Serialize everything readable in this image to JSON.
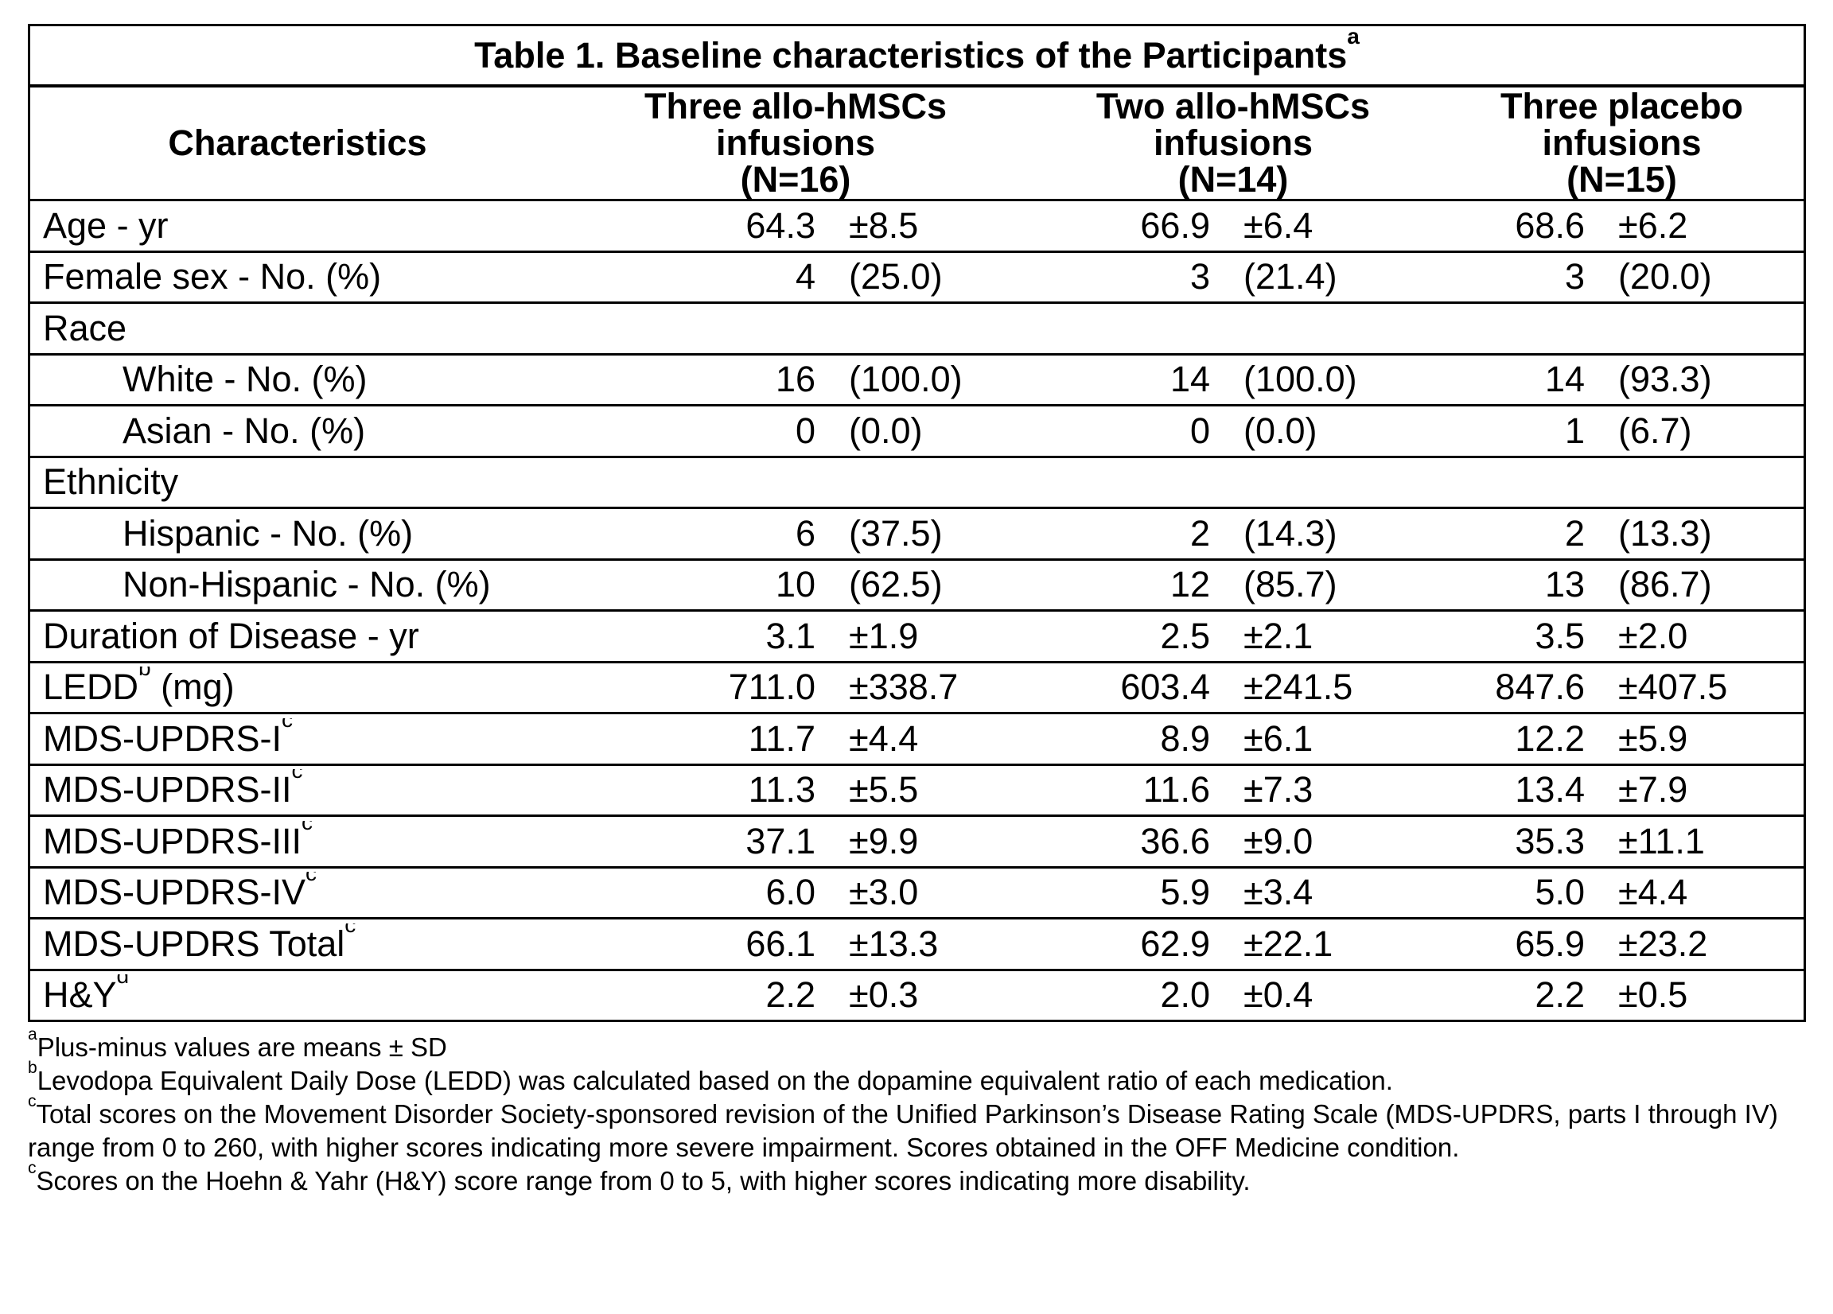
{
  "title": {
    "text": "Table 1. Baseline characteristics of the Participants",
    "sup": "a"
  },
  "table": {
    "headers": [
      {
        "lines": [
          "Characteristics"
        ]
      },
      {
        "lines": [
          "Three allo-hMSCs",
          "infusions",
          "(N=16)"
        ]
      },
      {
        "lines": [
          "Two allo-hMSCs",
          "infusions",
          "(N=14)"
        ]
      },
      {
        "lines": [
          "Three placebo",
          "infusions",
          "(N=15)"
        ]
      }
    ],
    "rows": [
      {
        "label": "Age - yr",
        "sup": "",
        "label_after": "",
        "indent": false,
        "g1": {
          "v": "64.3",
          "s": "±8.5"
        },
        "g2": {
          "v": "66.9",
          "s": "±6.4"
        },
        "g3": {
          "v": "68.6",
          "s": "±6.2"
        }
      },
      {
        "label": "Female sex - No. (%)",
        "sup": "",
        "label_after": "",
        "indent": false,
        "g1": {
          "v": "4",
          "s": "(25.0)"
        },
        "g2": {
          "v": "3",
          "s": "(21.4)"
        },
        "g3": {
          "v": "3",
          "s": "(20.0)"
        }
      },
      {
        "label": "Race",
        "sup": "",
        "label_after": "",
        "indent": false,
        "g1": {
          "v": "",
          "s": ""
        },
        "g2": {
          "v": "",
          "s": ""
        },
        "g3": {
          "v": "",
          "s": ""
        }
      },
      {
        "label": "White - No. (%)",
        "sup": "",
        "label_after": "",
        "indent": true,
        "g1": {
          "v": "16",
          "s": "(100.0)"
        },
        "g2": {
          "v": "14",
          "s": "(100.0)"
        },
        "g3": {
          "v": "14",
          "s": "(93.3)"
        }
      },
      {
        "label": "Asian - No. (%)",
        "sup": "",
        "label_after": "",
        "indent": true,
        "g1": {
          "v": "0",
          "s": "(0.0)"
        },
        "g2": {
          "v": "0",
          "s": "(0.0)"
        },
        "g3": {
          "v": "1",
          "s": "(6.7)"
        }
      },
      {
        "label": "Ethnicity",
        "sup": "",
        "label_after": "",
        "indent": false,
        "g1": {
          "v": "",
          "s": ""
        },
        "g2": {
          "v": "",
          "s": ""
        },
        "g3": {
          "v": "",
          "s": ""
        }
      },
      {
        "label": "Hispanic - No. (%)",
        "sup": "",
        "label_after": "",
        "indent": true,
        "g1": {
          "v": "6",
          "s": "(37.5)"
        },
        "g2": {
          "v": "2",
          "s": "(14.3)"
        },
        "g3": {
          "v": "2",
          "s": "(13.3)"
        }
      },
      {
        "label": "Non-Hispanic - No. (%)",
        "sup": "",
        "label_after": "",
        "indent": true,
        "g1": {
          "v": "10",
          "s": "(62.5)"
        },
        "g2": {
          "v": "12",
          "s": "(85.7)"
        },
        "g3": {
          "v": "13",
          "s": "(86.7)"
        }
      },
      {
        "label": "Duration of Disease - yr",
        "sup": "",
        "label_after": "",
        "indent": false,
        "g1": {
          "v": "3.1",
          "s": "±1.9"
        },
        "g2": {
          "v": "2.5",
          "s": "±2.1"
        },
        "g3": {
          "v": "3.5",
          "s": "±2.0"
        }
      },
      {
        "label": "LEDD",
        "sup": "b",
        "label_after": " (mg)",
        "indent": false,
        "g1": {
          "v": "711.0",
          "s": "±338.7"
        },
        "g2": {
          "v": "603.4",
          "s": "±241.5"
        },
        "g3": {
          "v": "847.6",
          "s": "±407.5"
        }
      },
      {
        "label": "MDS-UPDRS-I",
        "sup": "c",
        "label_after": "",
        "indent": false,
        "g1": {
          "v": "11.7",
          "s": "±4.4"
        },
        "g2": {
          "v": "8.9",
          "s": "±6.1"
        },
        "g3": {
          "v": "12.2",
          "s": "±5.9"
        }
      },
      {
        "label": "MDS-UPDRS-II",
        "sup": "c",
        "label_after": "",
        "indent": false,
        "g1": {
          "v": "11.3",
          "s": "±5.5"
        },
        "g2": {
          "v": "11.6",
          "s": "±7.3"
        },
        "g3": {
          "v": "13.4",
          "s": "±7.9"
        }
      },
      {
        "label": "MDS-UPDRS-III",
        "sup": "c",
        "label_after": "",
        "indent": false,
        "g1": {
          "v": "37.1",
          "s": "±9.9"
        },
        "g2": {
          "v": "36.6",
          "s": "±9.0"
        },
        "g3": {
          "v": "35.3",
          "s": "±11.1"
        }
      },
      {
        "label": "MDS-UPDRS-IV",
        "sup": "c",
        "label_after": "",
        "indent": false,
        "g1": {
          "v": "6.0",
          "s": "±3.0"
        },
        "g2": {
          "v": "5.9",
          "s": "±3.4"
        },
        "g3": {
          "v": "5.0",
          "s": "±4.4"
        }
      },
      {
        "label": "MDS-UPDRS Total",
        "sup": "c",
        "label_after": "",
        "indent": false,
        "g1": {
          "v": "66.1",
          "s": "±13.3"
        },
        "g2": {
          "v": "62.9",
          "s": "±22.1"
        },
        "g3": {
          "v": "65.9",
          "s": "±23.2"
        }
      },
      {
        "label": "H&Y",
        "sup": "d",
        "label_after": "",
        "indent": false,
        "g1": {
          "v": "2.2",
          "s": "±0.3"
        },
        "g2": {
          "v": "2.0",
          "s": "±0.4"
        },
        "g3": {
          "v": "2.2",
          "s": "±0.5"
        }
      }
    ]
  },
  "footnotes": [
    {
      "sup": "a",
      "text": "Plus-minus values are means ± SD"
    },
    {
      "sup": "b",
      "text": "Levodopa Equivalent Daily Dose (LEDD) was calculated based on the dopamine equivalent ratio of each medication."
    },
    {
      "sup": "c",
      "text": "Total scores on the Movement Disorder Society-sponsored revision of the Unified Parkinson’s Disease Rating Scale (MDS-UPDRS, parts I through IV) range from 0 to 260, with higher scores indicating more severe impairment. Scores obtained in the OFF Medicine condition."
    },
    {
      "sup": "c",
      "text": "Scores on the Hoehn & Yahr (H&Y) score range from 0 to 5, with higher scores indicating more disability."
    }
  ]
}
